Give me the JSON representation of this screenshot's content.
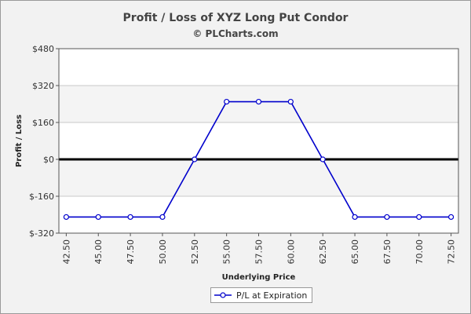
{
  "title": "Profit / Loss of XYZ Long Put Condor",
  "subtitle": "© PLCharts.com",
  "colors": {
    "series": "#0000cc",
    "zero_line": "#000000",
    "grid": "#c8c8c8",
    "plot_bg": "#ffffff"
  },
  "chart_data": {
    "type": "line",
    "xlabel": "Underlying Price",
    "ylabel": "Profit / Loss",
    "x": [
      "42.50",
      "45.00",
      "47.50",
      "50.00",
      "52.50",
      "55.00",
      "57.50",
      "60.00",
      "62.50",
      "65.00",
      "67.50",
      "70.00",
      "72.50"
    ],
    "y_ticks": [
      480,
      320,
      160,
      0,
      -160,
      -320
    ],
    "y_tick_labels": [
      "$480",
      "$320",
      "$160",
      "$0",
      "$-160",
      "$-320"
    ],
    "ylim": [
      -320,
      480
    ],
    "grid": true,
    "legend_position": "bottom-center",
    "series": [
      {
        "name": "P/L at Expiration",
        "values": [
          -250,
          -250,
          -250,
          -250,
          0,
          250,
          250,
          250,
          0,
          -250,
          -250,
          -250,
          -250
        ]
      }
    ]
  }
}
